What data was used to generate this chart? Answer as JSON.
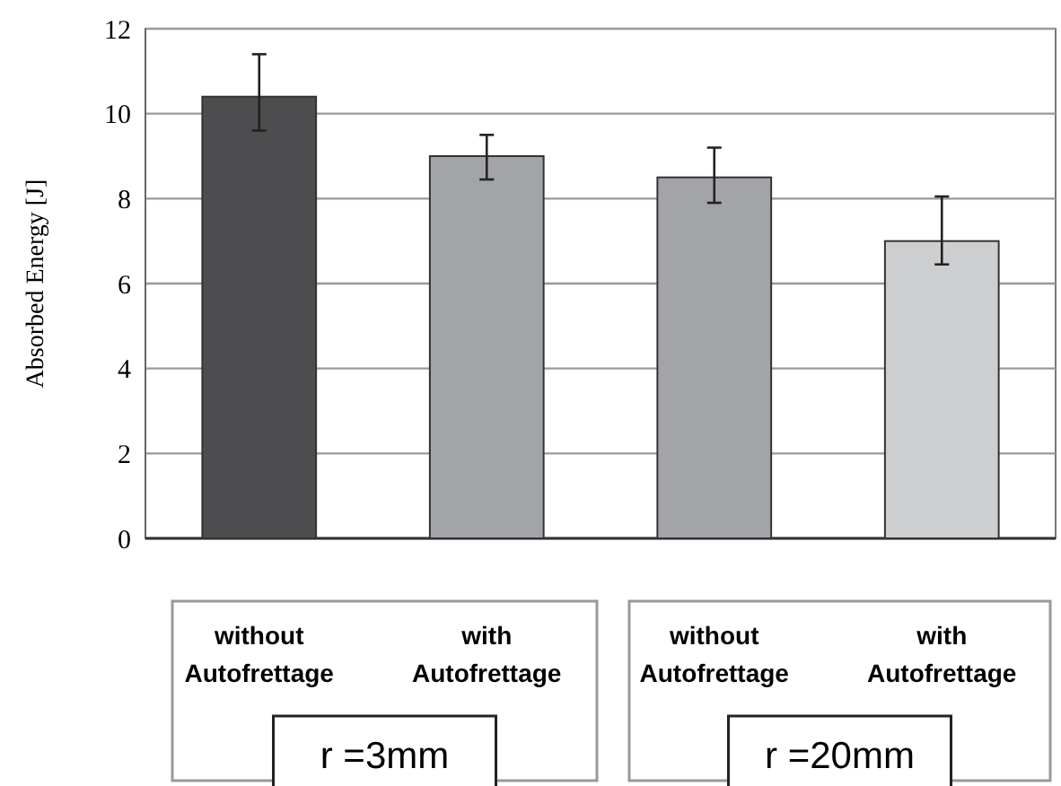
{
  "chart_data": {
    "type": "bar",
    "ylabel": "Absorbed Energy [J]",
    "categories": [
      "without Autofrettage",
      "with Autofrettage",
      "without Autofrettage",
      "with Autofrettage"
    ],
    "values": [
      10.4,
      9.0,
      8.5,
      7.0
    ],
    "colors": [
      "#4d4d4f",
      "#a3a4a8",
      "#a3a4a8",
      "#cdced0"
    ],
    "errors": [
      [
        9.6,
        11.4
      ],
      [
        8.45,
        9.5
      ],
      [
        7.9,
        9.2
      ],
      [
        6.45,
        8.05
      ]
    ],
    "ylim": [
      0,
      12
    ],
    "yticks": [
      0,
      2,
      4,
      6,
      8,
      10,
      12
    ],
    "grid": "y",
    "annotations": [
      "r =3mm",
      "r =20mm"
    ]
  }
}
